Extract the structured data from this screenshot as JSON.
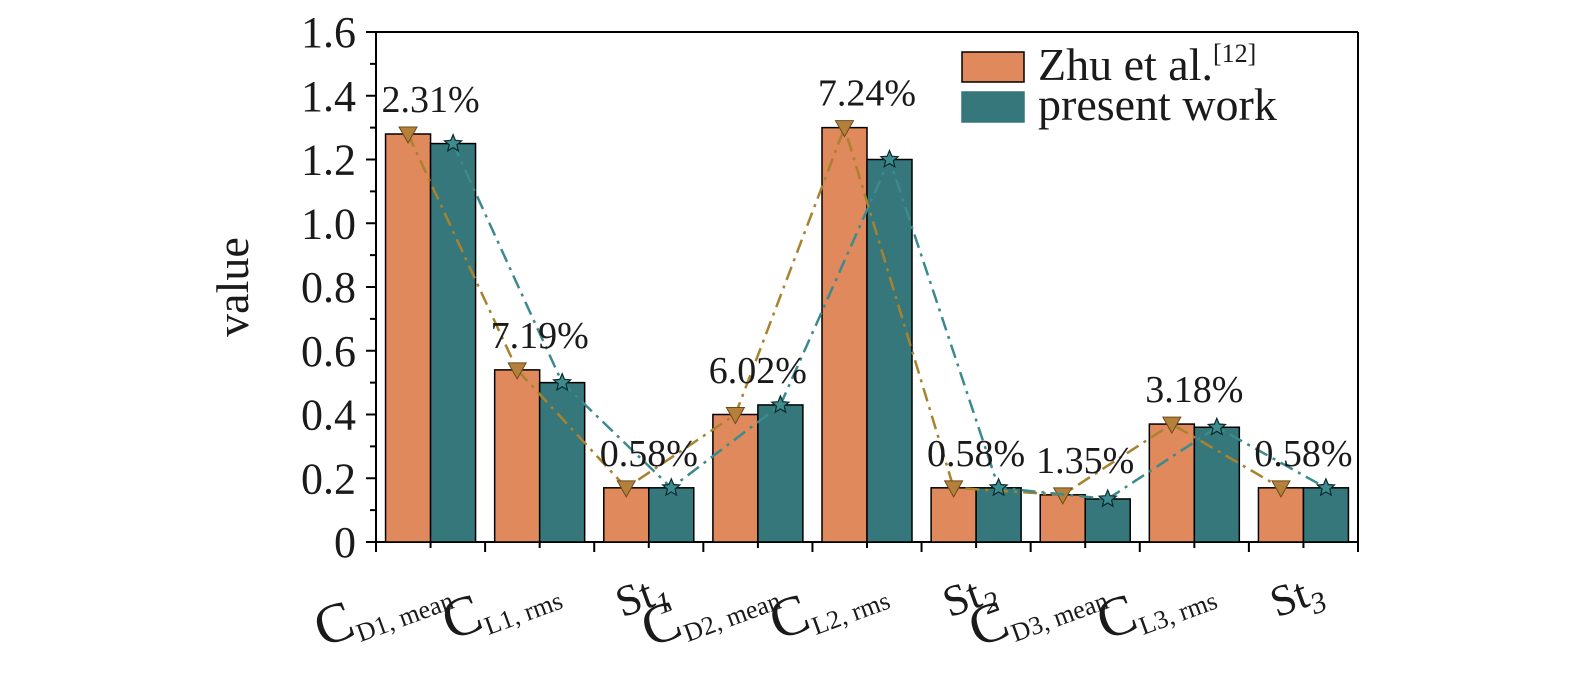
{
  "chart_data": {
    "type": "bar",
    "title": "",
    "xlabel": "",
    "ylabel": "value",
    "ylim": [
      0,
      1.6
    ],
    "yticks": [
      "0",
      "0.2",
      "0.4",
      "0.6",
      "0.8",
      "1.0",
      "1.2",
      "1.4",
      "1.6"
    ],
    "grid": false,
    "legend_position": "top-right",
    "categories": [
      {
        "base": "C",
        "sub": "D1, mean"
      },
      {
        "base": "C",
        "sub": "L1, rms"
      },
      {
        "base": "St",
        "sub": "1"
      },
      {
        "base": "C",
        "sub": "D2, mean"
      },
      {
        "base": "C",
        "sub": "L2, rms"
      },
      {
        "base": "St",
        "sub": "2"
      },
      {
        "base": "C",
        "sub": "D3, mean"
      },
      {
        "base": "C",
        "sub": "L3, rms"
      },
      {
        "base": "St",
        "sub": "3"
      }
    ],
    "series": [
      {
        "name": "Zhu et al.",
        "name_sup": "[12]",
        "color": "#E0895C",
        "values": [
          1.28,
          0.54,
          0.17,
          0.4,
          1.3,
          0.17,
          0.148,
          0.37,
          0.17
        ]
      },
      {
        "name": "present work",
        "color": "#35777B",
        "values": [
          1.25,
          0.5,
          0.17,
          0.43,
          1.2,
          0.17,
          0.135,
          0.36,
          0.17
        ]
      }
    ],
    "line_colors": {
      "Zhu et al.": "#A8822E",
      "present work": "#3A8A8E"
    },
    "annotations": [
      "2.31%",
      "7.19%",
      "0.58%",
      "6.02%",
      "7.24%",
      "0.58%",
      "1.35%",
      "3.18%",
      "0.58%"
    ]
  }
}
